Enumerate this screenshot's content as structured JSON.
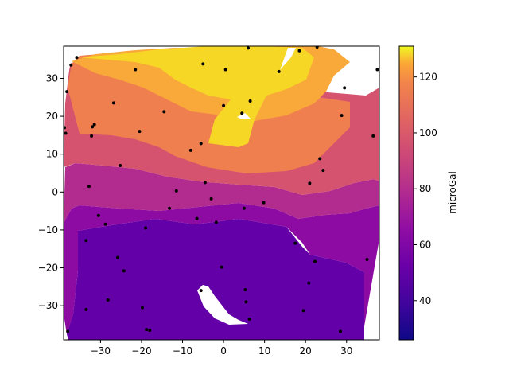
{
  "chart_data": {
    "type": "contour",
    "title": "",
    "xlabel": "",
    "ylabel": "",
    "xlim": [
      -39,
      38
    ],
    "ylim": [
      -39,
      38.5
    ],
    "xticks": [
      -30,
      -20,
      -10,
      0,
      10,
      20,
      30
    ],
    "yticks": [
      -30,
      -20,
      -10,
      0,
      10,
      20,
      30
    ],
    "xtick_labels": [
      "−30",
      "−20",
      "−10",
      "0",
      "10",
      "20",
      "30"
    ],
    "ytick_labels": [
      "−30",
      "−20",
      "−10",
      "0",
      "10",
      "20",
      "30"
    ],
    "colormap": "plasma",
    "colorbar": {
      "label": "microGal",
      "range": [
        26,
        131
      ],
      "ticks": [
        40,
        60,
        80,
        100,
        120
      ],
      "tick_labels": [
        "40",
        "60",
        "80",
        "100",
        "120"
      ]
    },
    "grid": false,
    "level_bands": [
      {
        "range": [
          26,
          40
        ],
        "color": "#3a049a"
      },
      {
        "range": [
          40,
          54
        ],
        "color": "#6300a7"
      },
      {
        "range": [
          54,
          68
        ],
        "color": "#8d0ba3"
      },
      {
        "range": [
          68,
          82
        ],
        "color": "#b22b8f"
      },
      {
        "range": [
          82,
          96
        ],
        "color": "#d5536f"
      },
      {
        "range": [
          96,
          110
        ],
        "color": "#ef7f4f"
      },
      {
        "range": [
          110,
          124
        ],
        "color": "#f9a83a"
      },
      {
        "range": [
          124,
          138
        ],
        "color": "#f7d725"
      }
    ],
    "stations": [
      [
        -38.8,
        17.0
      ],
      [
        -38.5,
        15.5
      ],
      [
        -38.2,
        26.5
      ],
      [
        -38.0,
        -36.8
      ],
      [
        -37.2,
        33.5
      ],
      [
        -35.8,
        35.5
      ],
      [
        -33.5,
        -31.0
      ],
      [
        -33.5,
        -12.8
      ],
      [
        -32.8,
        1.5
      ],
      [
        -32.2,
        14.8
      ],
      [
        -32.0,
        17.2
      ],
      [
        -31.5,
        17.8
      ],
      [
        -30.5,
        -6.2
      ],
      [
        -28.8,
        -8.5
      ],
      [
        -28.2,
        -28.5
      ],
      [
        -26.8,
        23.5
      ],
      [
        -25.8,
        -17.3
      ],
      [
        -25.2,
        7.0
      ],
      [
        -24.3,
        -20.8
      ],
      [
        -21.5,
        32.3
      ],
      [
        -20.5,
        16.0
      ],
      [
        -19.8,
        -30.5
      ],
      [
        -19.0,
        -9.5
      ],
      [
        -18.8,
        -36.3
      ],
      [
        -18.0,
        -36.5
      ],
      [
        -14.5,
        21.2
      ],
      [
        -13.2,
        -4.3
      ],
      [
        -11.5,
        0.3
      ],
      [
        -8.0,
        11.0
      ],
      [
        -6.5,
        -7.0
      ],
      [
        -5.5,
        12.8
      ],
      [
        -5.5,
        -26.0
      ],
      [
        -5.0,
        33.8
      ],
      [
        -4.5,
        2.5
      ],
      [
        -3.0,
        -1.8
      ],
      [
        -1.8,
        -8.0
      ],
      [
        -0.5,
        -19.8
      ],
      [
        0.0,
        22.8
      ],
      [
        0.5,
        32.3
      ],
      [
        4.5,
        20.8
      ],
      [
        5.0,
        -4.3
      ],
      [
        5.3,
        -25.8
      ],
      [
        5.5,
        -29.0
      ],
      [
        6.0,
        38.0
      ],
      [
        6.3,
        -33.5
      ],
      [
        6.5,
        24.0
      ],
      [
        9.8,
        -2.8
      ],
      [
        13.5,
        31.8
      ],
      [
        17.5,
        -13.5
      ],
      [
        18.5,
        37.3
      ],
      [
        19.5,
        -31.3
      ],
      [
        20.8,
        -24.0
      ],
      [
        21.0,
        2.3
      ],
      [
        22.3,
        -18.3
      ],
      [
        22.8,
        38.3
      ],
      [
        23.5,
        8.8
      ],
      [
        24.3,
        5.7
      ],
      [
        28.5,
        -36.8
      ],
      [
        28.8,
        20.2
      ],
      [
        29.5,
        27.5
      ],
      [
        35.0,
        -17.8
      ],
      [
        36.5,
        14.8
      ],
      [
        37.5,
        32.3
      ]
    ]
  }
}
